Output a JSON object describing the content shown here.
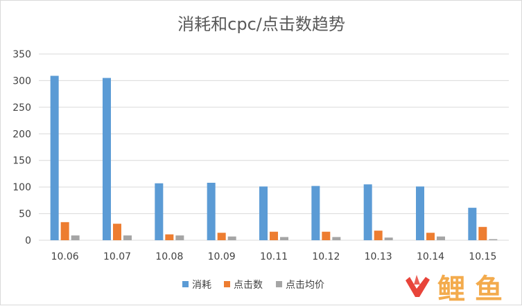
{
  "chart_data": {
    "type": "bar",
    "title": "消耗和cpc/点击数趋势",
    "categories": [
      "10.06",
      "10.07",
      "10.08",
      "10.09",
      "10.11",
      "10.12",
      "10.13",
      "10.14",
      "10.15"
    ],
    "series": [
      {
        "name": "消耗",
        "color": "#5b9bd5",
        "values": [
          309,
          305,
          107,
          108,
          101,
          102,
          105,
          101,
          61
        ]
      },
      {
        "name": "点击数",
        "color": "#ed7d31",
        "values": [
          34,
          31,
          11,
          14,
          16,
          16,
          18,
          14,
          25
        ]
      },
      {
        "name": "点击均价",
        "color": "#a5a5a5",
        "values": [
          9,
          9,
          9,
          7,
          6,
          6,
          5,
          7,
          2
        ]
      }
    ],
    "y_ticks": [
      "0",
      "50",
      "100",
      "150",
      "200",
      "250",
      "300",
      "350"
    ],
    "ylim": [
      0,
      350
    ],
    "grid": true,
    "legend_position": "bottom"
  },
  "watermark": {
    "text": "火鲤鱼",
    "colors": [
      "#e8443a",
      "#f2a33a"
    ]
  }
}
